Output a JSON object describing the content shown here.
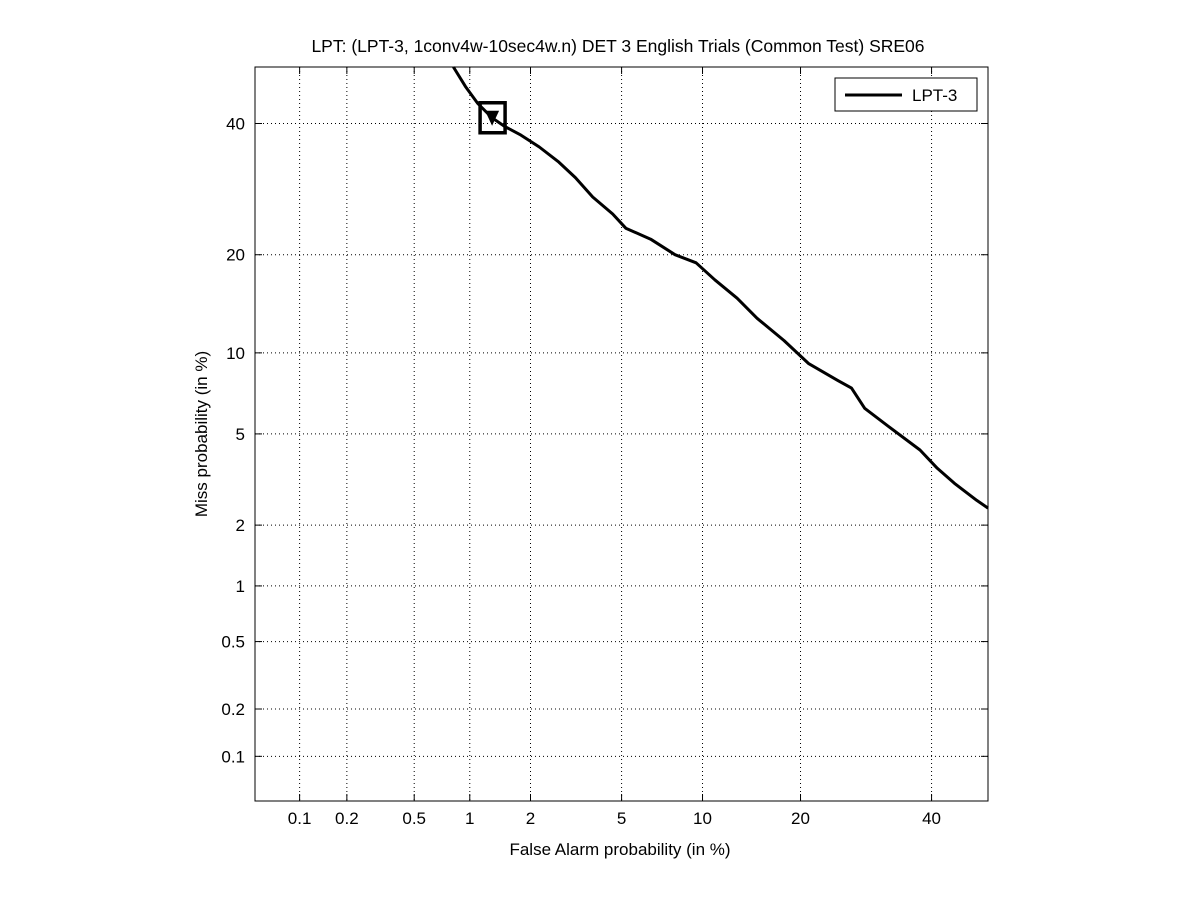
{
  "chart_data": {
    "type": "line",
    "title": "LPT: (LPT-3, 1conv4w-10sec4w.n) DET 3 English Trials (Common Test) SRE06",
    "xlabel": "False Alarm probability (in %)",
    "ylabel": "Miss probability (in %)",
    "x_scale": "probit",
    "y_scale": "probit",
    "xlim": [
      0.05,
      50
    ],
    "ylim": [
      0.05,
      50
    ],
    "grid": true,
    "legend_position": "top-right",
    "x_ticks": [
      0.1,
      0.2,
      0.5,
      1,
      2,
      5,
      10,
      20,
      40
    ],
    "x_tick_labels": [
      "0.1",
      "0.2",
      "0.5",
      "1",
      "2",
      "5",
      "10",
      "20",
      "40"
    ],
    "y_ticks": [
      0.1,
      0.2,
      0.5,
      1,
      2,
      5,
      10,
      20,
      40
    ],
    "y_tick_labels": [
      "0.1",
      "0.2",
      "0.5",
      "1",
      "2",
      "5",
      "10",
      "20",
      "40"
    ],
    "series": [
      {
        "name": "LPT-3",
        "color": "#000000",
        "points": [
          [
            0.82,
            50
          ],
          [
            0.95,
            46.5
          ],
          [
            1.1,
            43.5
          ],
          [
            1.3,
            41
          ],
          [
            1.5,
            39.5
          ],
          [
            1.8,
            38
          ],
          [
            2.2,
            36
          ],
          [
            2.7,
            33.5
          ],
          [
            3.2,
            31
          ],
          [
            3.8,
            28
          ],
          [
            4.6,
            25.5
          ],
          [
            5.2,
            23.5
          ],
          [
            6.5,
            22
          ],
          [
            8,
            20
          ],
          [
            9.5,
            19
          ],
          [
            11,
            17
          ],
          [
            13,
            15
          ],
          [
            15,
            13
          ],
          [
            18,
            11
          ],
          [
            21,
            9.2
          ],
          [
            25,
            8
          ],
          [
            27,
            7.5
          ],
          [
            29,
            6.3
          ],
          [
            33,
            5.3
          ],
          [
            38,
            4.3
          ],
          [
            41,
            3.6
          ],
          [
            44,
            3.1
          ],
          [
            48,
            2.6
          ],
          [
            50,
            2.4
          ]
        ]
      }
    ],
    "markers": [
      {
        "series": "LPT-3",
        "shape": "square",
        "x": 1.3,
        "y": 41
      }
    ]
  }
}
